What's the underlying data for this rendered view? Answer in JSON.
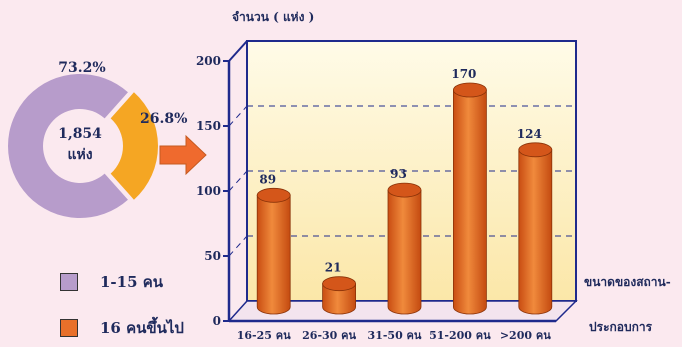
{
  "colors": {
    "donut_large": "#b79ccb",
    "donut_small": "#f5a623",
    "bar": "#e8702a",
    "bar_top": "#d4561a",
    "arrow": "#ef6a2e",
    "axis": "#1f2a8c",
    "text": "#1f2a5c"
  },
  "donut": {
    "center_value": "1,854",
    "center_unit": "แห่ง",
    "large_pct_label": "73.2%",
    "small_pct_label": "26.8%",
    "large_fraction": 0.732,
    "small_fraction": 0.268
  },
  "legend": [
    {
      "label": "1-15 คน",
      "color": "#b79ccb"
    },
    {
      "label": "16 คนขึ้นไป",
      "color": "#e8702a"
    }
  ],
  "chart_data": [
    {
      "type": "pie",
      "labels": [
        "1-15 คน",
        "16 คนขึ้นไป"
      ],
      "values": [
        73.2,
        26.8
      ],
      "center_text": "1,854 แห่ง"
    },
    {
      "type": "bar",
      "ylabel": "จำนวน ( แห่ง )",
      "xlabel": "ขนาดของสถาน-ประกอบการ",
      "xlabel_lines": [
        "ขนาดของสถาน-",
        "ประกอบการ"
      ],
      "categories": [
        "16-25 คน",
        "26-30 คน",
        "31-50 คน",
        "51-200 คน",
        ">200 คน"
      ],
      "values": [
        89,
        21,
        93,
        170,
        124
      ],
      "value_labels": [
        "89",
        "21",
        "93",
        "170",
        "124"
      ],
      "ylim": [
        0,
        200
      ],
      "yticks": [
        "0",
        "50",
        "100",
        "150",
        "200"
      ],
      "grid": true
    }
  ]
}
